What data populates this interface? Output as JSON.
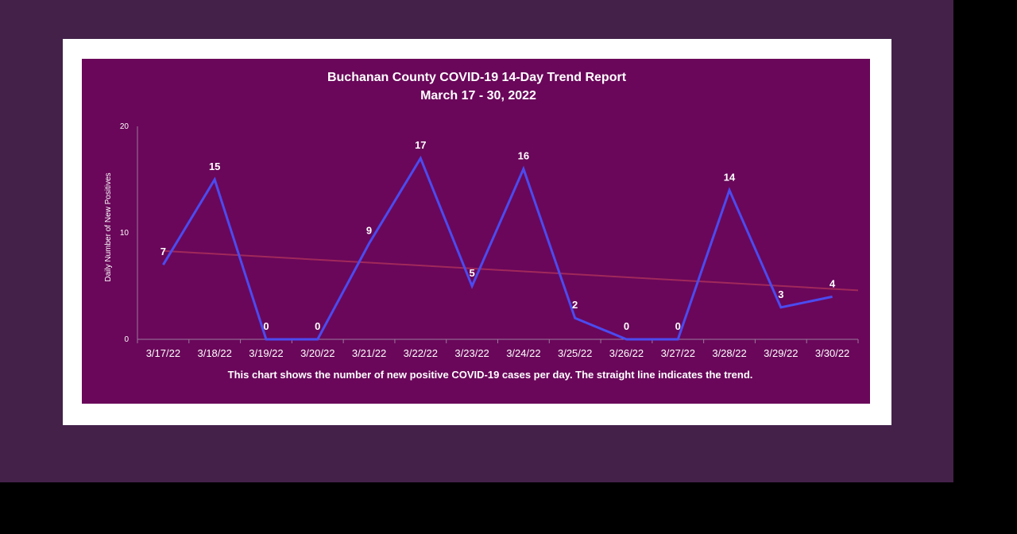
{
  "chart_data": {
    "type": "line",
    "title": "Buchanan  County COVID-19 14-Day Trend Report",
    "subtitle": "March 17 - 30, 2022",
    "xlabel": "",
    "ylabel": "Daily Number of New Positives",
    "ylim": [
      0,
      20
    ],
    "yticks": [
      0,
      10,
      20
    ],
    "grid": false,
    "categories": [
      "3/17/22",
      "3/18/22",
      "3/19/22",
      "3/20/22",
      "3/21/22",
      "3/22/22",
      "3/23/22",
      "3/24/22",
      "3/25/22",
      "3/26/22",
      "3/27/22",
      "3/28/22",
      "3/29/22",
      "3/30/22"
    ],
    "series": [
      {
        "values": [
          7,
          15,
          0,
          0,
          9,
          17,
          5,
          16,
          2,
          0,
          0,
          14,
          3,
          4
        ],
        "color": "#4b4bf0"
      }
    ],
    "trendline": {
      "start": 8.3,
      "end": 4.6,
      "color": "#a0285a"
    },
    "caption": "This chart shows the number of new positive COVID-19 cases per day. The straight line indicates the trend."
  },
  "colors": {
    "page_background": "#432149",
    "frame": "#ffffff",
    "plot_background": "#6a075a",
    "text": "#ffffff"
  }
}
